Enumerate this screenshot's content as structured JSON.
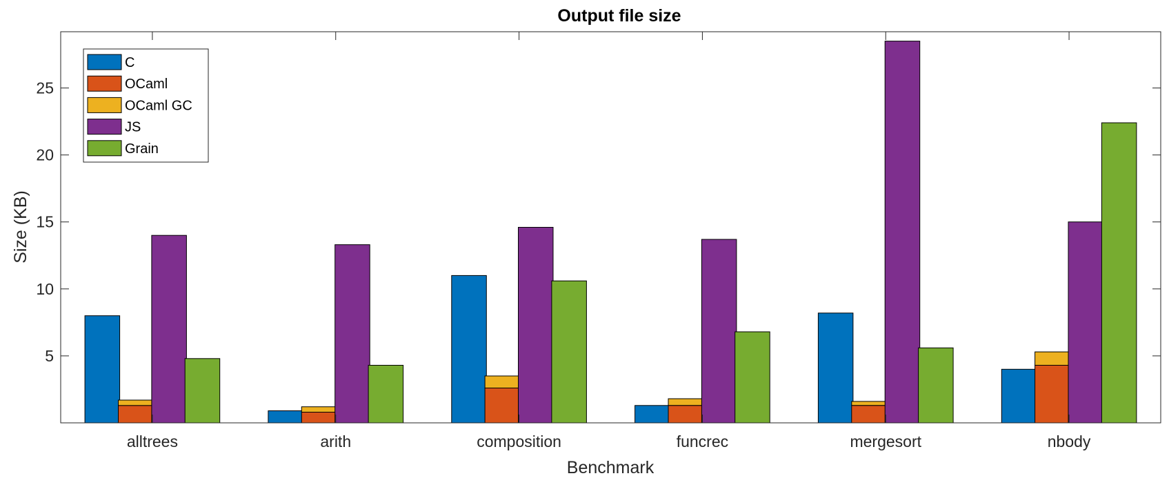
{
  "chart_data": {
    "type": "bar",
    "title": "Output file size",
    "xlabel": "Benchmark",
    "ylabel": "Size (KB)",
    "categories": [
      "alltrees",
      "arith",
      "composition",
      "funcrec",
      "mergesort",
      "nbody"
    ],
    "ylim": [
      0,
      29.2
    ],
    "yticks": [
      5,
      10,
      15,
      20,
      25
    ],
    "grid": false,
    "legend_position": "top-left",
    "series": [
      {
        "name": "C",
        "color": "#0072BD",
        "values": [
          8.0,
          0.9,
          11.0,
          1.3,
          8.2,
          4.0
        ]
      },
      {
        "name": "OCaml",
        "color": "#D95319",
        "stack_group": "ocaml",
        "values": [
          1.3,
          0.8,
          2.6,
          1.3,
          1.3,
          4.3
        ]
      },
      {
        "name": "OCaml GC",
        "color": "#EDB120",
        "stack_group": "ocaml",
        "values": [
          0.4,
          0.4,
          0.9,
          0.5,
          0.3,
          1.0
        ]
      },
      {
        "name": "JS",
        "color": "#7E2F8E",
        "values": [
          14.0,
          13.3,
          14.6,
          13.7,
          28.5,
          15.0
        ]
      },
      {
        "name": "Grain",
        "color": "#77AC30",
        "values": [
          4.8,
          4.3,
          10.6,
          6.8,
          5.6,
          22.4
        ]
      }
    ]
  }
}
